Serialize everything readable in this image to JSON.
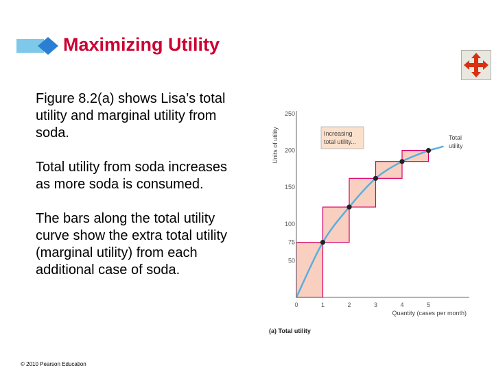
{
  "slide": {
    "title": "Maximizing Utility",
    "paragraphs": [
      "Figure 8.2(a) shows Lisa’s total utility and marginal utility from soda.",
      "Total utility from soda increases as more soda is consumed.",
      "The bars along the total utility curve show the extra total utility (marginal utility) from each additional case of soda."
    ],
    "copyright": "© 2010 Pearson Education"
  },
  "colors": {
    "title": "#cc0033",
    "deco_blue": "#7ec8ea",
    "curve": "#5aaee0",
    "bar_fill": "#f9cfc0",
    "bar_stroke": "#d9006c",
    "annotation_fill": "#fbe0cc",
    "icon_red": "#d93010"
  },
  "icons": {
    "move": "move-arrows-icon"
  },
  "chart_data": {
    "type": "line",
    "ylabel": "Units of utility",
    "xlabel": "Quantity (cases per month)",
    "caption": "(a) Total utility",
    "curve_label": [
      "Total",
      "utility"
    ],
    "annotation": [
      "Increasing",
      "total utility..."
    ],
    "xlim": [
      0,
      6
    ],
    "ylim": [
      0,
      250
    ],
    "x_ticks": [
      "0",
      "1",
      "2",
      "3",
      "4",
      "5"
    ],
    "y_ticks": [
      "50",
      "75",
      "100",
      "150",
      "200",
      "250"
    ],
    "points": [
      {
        "x": 1,
        "y": 75
      },
      {
        "x": 2,
        "y": 123
      },
      {
        "x": 3,
        "y": 162
      },
      {
        "x": 4,
        "y": 185
      },
      {
        "x": 5,
        "y": 200
      }
    ],
    "bars": [
      {
        "x0": 0,
        "x1": 1,
        "y0": 0,
        "y1": 75
      },
      {
        "x0": 1,
        "x1": 2,
        "y0": 75,
        "y1": 123
      },
      {
        "x0": 2,
        "x1": 3,
        "y0": 123,
        "y1": 162
      },
      {
        "x0": 3,
        "x1": 4,
        "y0": 162,
        "y1": 185
      },
      {
        "x0": 4,
        "x1": 5,
        "y0": 185,
        "y1": 200
      }
    ]
  }
}
